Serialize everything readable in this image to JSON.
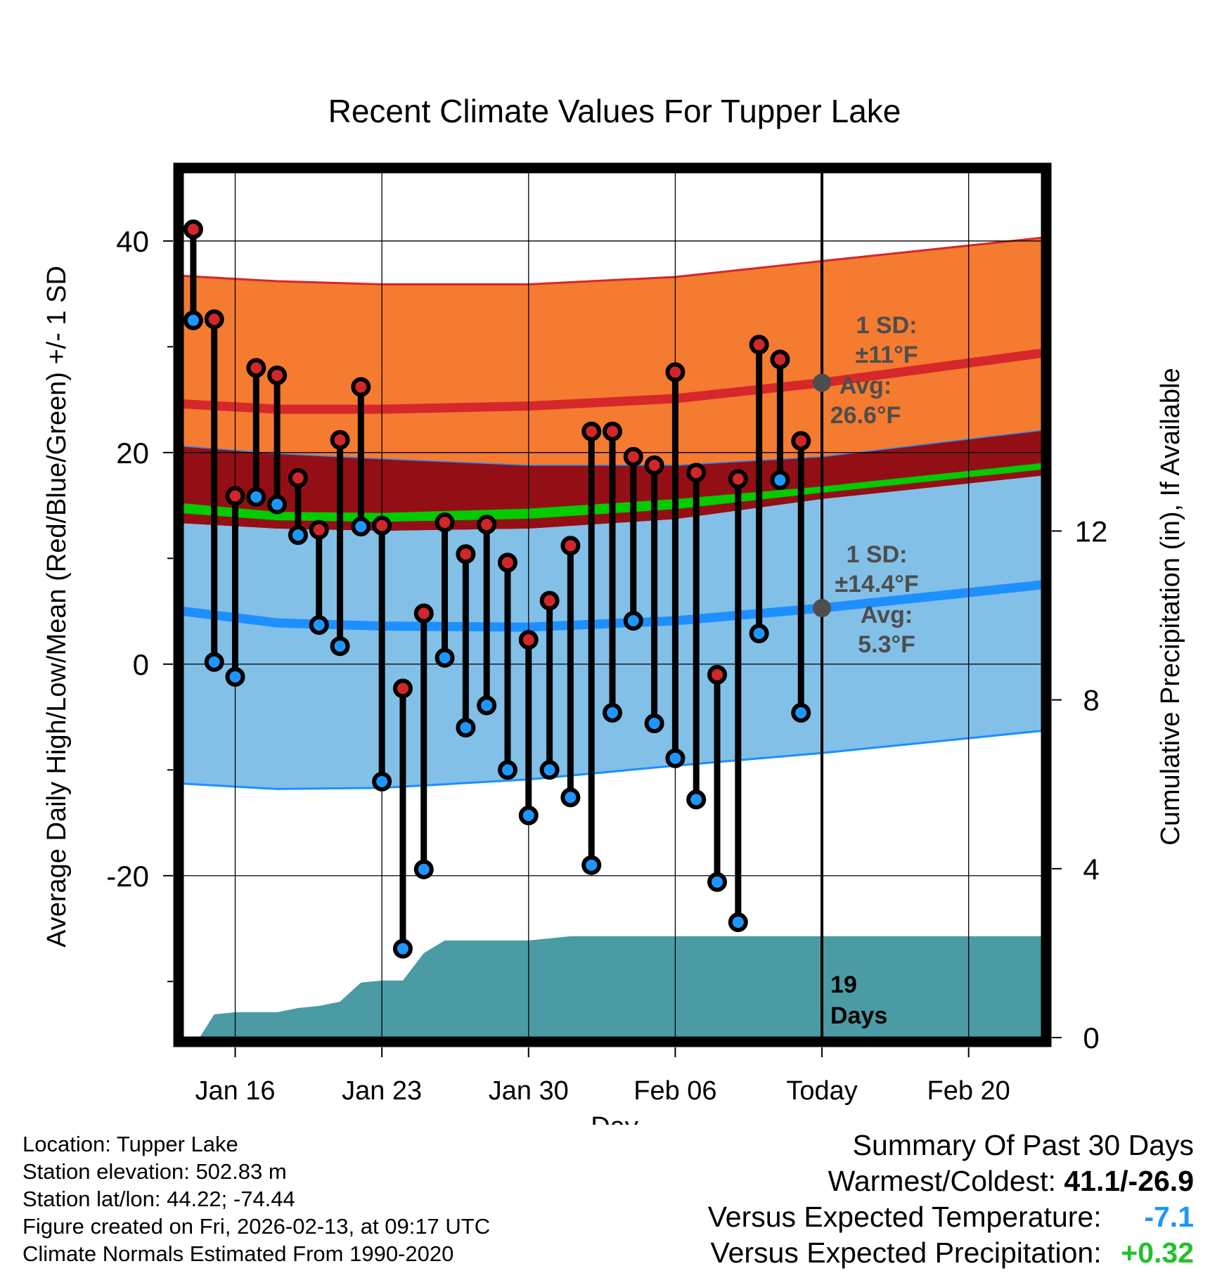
{
  "chart_data": {
    "type": "line",
    "title": "Recent Climate Values For Tupper Lake",
    "xlabel": "Day",
    "ylabel": "Average Daily High/Low/Mean (Red/Blue/Green) +/- 1 SD",
    "y2label": "Cumulative Precipitation (in), If Available",
    "xlim": [
      -2.5,
      38.5
    ],
    "ylim": [
      -35.3,
      46.5
    ],
    "y2lim": [
      0,
      20.5
    ],
    "x_ticks": [
      {
        "x": 0,
        "label": "Jan 16"
      },
      {
        "x": 7,
        "label": "Jan 23"
      },
      {
        "x": 14,
        "label": "Jan 30"
      },
      {
        "x": 21,
        "label": "Feb 06"
      },
      {
        "x": 28,
        "label": "Today"
      },
      {
        "x": 35,
        "label": "Feb 20"
      }
    ],
    "y_ticks": [
      {
        "value": 40,
        "label": "40"
      },
      {
        "value": 20,
        "label": "20"
      },
      {
        "value": 0,
        "label": "0"
      },
      {
        "value": -20,
        "label": "-20"
      }
    ],
    "y2_ticks": [
      {
        "value": 0,
        "label": "0"
      },
      {
        "value": 4,
        "label": "4"
      },
      {
        "value": 8,
        "label": "8"
      },
      {
        "value": 12,
        "label": "12"
      }
    ],
    "today_x": 28,
    "observed": {
      "x": [
        -2,
        -1,
        0,
        1,
        2,
        3,
        4,
        5,
        6,
        7,
        8,
        9,
        10,
        11,
        12,
        13,
        14,
        15,
        16,
        17,
        18,
        19,
        20,
        21,
        22,
        23,
        24,
        25,
        26,
        27
      ],
      "high": [
        41.1,
        32.6,
        15.9,
        28.0,
        27.3,
        17.6,
        12.7,
        21.2,
        26.2,
        13.1,
        -2.3,
        4.8,
        13.4,
        10.4,
        13.2,
        9.6,
        2.3,
        6.0,
        11.2,
        22.0,
        22.0,
        19.6,
        18.8,
        27.6,
        18.1,
        -1.0,
        17.5,
        30.2,
        28.8,
        21.1
      ],
      "low": [
        32.5,
        0.2,
        -1.2,
        15.8,
        15.1,
        12.2,
        3.7,
        1.7,
        13.0,
        -11.1,
        -26.9,
        -19.4,
        0.6,
        -6.0,
        -3.9,
        -10.0,
        -14.3,
        -10.0,
        -12.6,
        -19.0,
        -4.6,
        4.1,
        -5.6,
        -8.9,
        -12.8,
        -20.6,
        -24.4,
        2.9,
        17.4,
        -4.6
      ]
    },
    "normals": {
      "x": [
        -2.5,
        2,
        7,
        14,
        21,
        28,
        38.5
      ],
      "high_avg": [
        24.6,
        24.1,
        24.1,
        24.4,
        25.1,
        26.6,
        29.4
      ],
      "high_sd_upper": [
        36.7,
        36.2,
        35.9,
        35.9,
        36.6,
        38.1,
        40.3
      ],
      "high_sd_lower": [
        20.6,
        19.9,
        19.4,
        18.8,
        18.8,
        19.6,
        22.1
      ],
      "mean_lower": [
        13.3,
        12.8,
        12.6,
        12.8,
        13.7,
        15.6,
        17.8
      ],
      "mean_upper": [
        15.2,
        14.4,
        14.3,
        14.7,
        15.6,
        16.8,
        19.0
      ],
      "low_avg": [
        5.0,
        3.9,
        3.6,
        3.5,
        4.1,
        5.3,
        7.5
      ],
      "low_sd_lower": [
        -11.3,
        -11.8,
        -11.7,
        -10.9,
        -9.6,
        -8.4,
        -6.3
      ]
    },
    "precipitation": {
      "x": [
        -2.5,
        -1.7,
        -1,
        0,
        2,
        3,
        4,
        5,
        6,
        7,
        8,
        9,
        10,
        14,
        16,
        20,
        28,
        38.5
      ],
      "cumulative_in": [
        0,
        0,
        0.55,
        0.6,
        0.6,
        0.7,
        0.75,
        0.85,
        1.3,
        1.35,
        1.35,
        2.0,
        2.3,
        2.3,
        2.4,
        2.4,
        2.4,
        2.4
      ]
    },
    "annotations": {
      "high_sd": "1 SD:",
      "high_sd_value": "±11°F",
      "high_avg_label": "Avg:",
      "high_avg_value": "26.6°F",
      "high_avg_y": 26.6,
      "low_sd": "1 SD:",
      "low_sd_value": "±14.4°F",
      "low_avg_label": "Avg:",
      "low_avg_value": "5.3°F",
      "low_avg_y": 5.3,
      "days_count": "19",
      "days_label": "Days"
    },
    "colors": {
      "high_band": "#f47b30",
      "high_band_edge": "#d6272b",
      "high_avg_line": "#d6272b",
      "mean_band": "#940f15",
      "mean_green": "#00cc00",
      "low_band": "#82c0e8",
      "low_band_edge": "#1e8fff",
      "low_avg_line": "#1e8fff",
      "precip": "#4a9ba4",
      "high_dot": "#d1262a",
      "low_dot": "#1e96ff",
      "annotation": "#4d4d4d"
    }
  },
  "footer": {
    "location": "Location: Tupper Lake",
    "elevation": "Station elevation: 502.83 m",
    "latlon": "Station lat/lon: 44.22; -74.44",
    "created": "Figure created on Fri, 2026-02-13, at 09:17 UTC",
    "normals": "Climate Normals Estimated From 1990-2020"
  },
  "summary": {
    "title": "Summary Of Past 30 Days",
    "warmest_label": "Warmest/Coldest:",
    "warmest_value": "41.1/-26.9",
    "temp_label": "Versus Expected Temperature:",
    "temp_value": "-7.1",
    "precip_label": "Versus Expected Precipitation:",
    "precip_value": "+0.32"
  }
}
